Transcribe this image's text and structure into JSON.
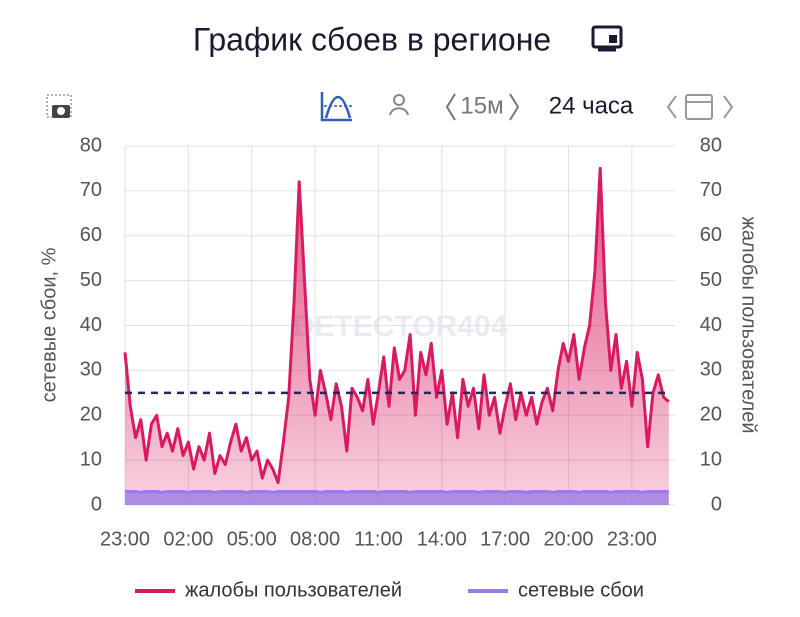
{
  "chart_data": {
    "type": "line",
    "title": "График сбоев в регионе",
    "interval": "15м",
    "range": "24 часа",
    "watermark": "DETECTOR404",
    "y_label": "сетевые сбои, %",
    "y2_label": "жалобы пользователей",
    "categories": [
      "23:00",
      null,
      null,
      null,
      null,
      null,
      null,
      null,
      null,
      null,
      null,
      null,
      "02:00",
      null,
      null,
      null,
      null,
      null,
      null,
      null,
      null,
      null,
      null,
      null,
      "05:00",
      null,
      null,
      null,
      null,
      null,
      null,
      null,
      null,
      null,
      null,
      null,
      "08:00",
      null,
      null,
      null,
      null,
      null,
      null,
      null,
      null,
      null,
      null,
      null,
      "11:00",
      null,
      null,
      null,
      null,
      null,
      null,
      null,
      null,
      null,
      null,
      null,
      "14:00",
      null,
      null,
      null,
      null,
      null,
      null,
      null,
      null,
      null,
      null,
      null,
      "17:00",
      null,
      null,
      null,
      null,
      null,
      null,
      null,
      null,
      null,
      null,
      null,
      "20:00",
      null,
      null,
      null,
      null,
      null,
      null,
      null,
      null,
      null,
      null,
      null,
      "23:00",
      null,
      null,
      null,
      null,
      null,
      null,
      null
    ],
    "ylim": [
      0,
      80
    ],
    "yticks": [
      0,
      10,
      20,
      30,
      40,
      50,
      60,
      70,
      80
    ],
    "y2lim": [
      0,
      80
    ],
    "y2ticks": [
      0,
      10,
      20,
      30,
      40,
      50,
      60,
      70,
      80
    ],
    "grid": true,
    "reference_line": {
      "value": 25,
      "color": "#1f2a5c"
    },
    "series": [
      {
        "name": "жалобы пользователей",
        "color": "#d81b60",
        "axis": "y2",
        "values": [
          34,
          22,
          15,
          19,
          10,
          18,
          20,
          13,
          16,
          12,
          17,
          11,
          14,
          8,
          13,
          10,
          16,
          7,
          11,
          9,
          14,
          18,
          12,
          15,
          10,
          12,
          6,
          10,
          8,
          5,
          14,
          24,
          45,
          72,
          50,
          28,
          20,
          30,
          25,
          19,
          27,
          22,
          12,
          26,
          24,
          21,
          28,
          18,
          25,
          33,
          22,
          35,
          28,
          30,
          38,
          20,
          34,
          29,
          36,
          24,
          30,
          18,
          25,
          15,
          28,
          22,
          26,
          17,
          29,
          20,
          24,
          16,
          22,
          27,
          19,
          25,
          20,
          24,
          18,
          23,
          26,
          21,
          30,
          36,
          32,
          38,
          28,
          35,
          40,
          52,
          75,
          45,
          30,
          38,
          26,
          32,
          22,
          34,
          28,
          13,
          25,
          29,
          24,
          23
        ]
      },
      {
        "name": "сетевые сбои",
        "color": "#9c7be3",
        "values": [
          3,
          3,
          3,
          2.8,
          3,
          3,
          3,
          2.8,
          3,
          3,
          3,
          3,
          2.8,
          3,
          3,
          3,
          3,
          2.8,
          3,
          3,
          3,
          3,
          3,
          2.8,
          3,
          3,
          3,
          3,
          2.8,
          3,
          3,
          3,
          3,
          3,
          3,
          3,
          3,
          2.8,
          3,
          3,
          3,
          3,
          2.8,
          3,
          3,
          3,
          3,
          3,
          2.8,
          3,
          3,
          3,
          3,
          3,
          2.8,
          3,
          3,
          3,
          3,
          3,
          3,
          2.8,
          3,
          3,
          3,
          3,
          3,
          2.8,
          3,
          3,
          3,
          3,
          2.8,
          3,
          3,
          3,
          2.8,
          3,
          3,
          3,
          3,
          2.8,
          3,
          3,
          3,
          3,
          2.8,
          3,
          3,
          3,
          3,
          3,
          2.8,
          3,
          3,
          3,
          3,
          3,
          2.8,
          3,
          3,
          3,
          3,
          3
        ]
      }
    ]
  }
}
